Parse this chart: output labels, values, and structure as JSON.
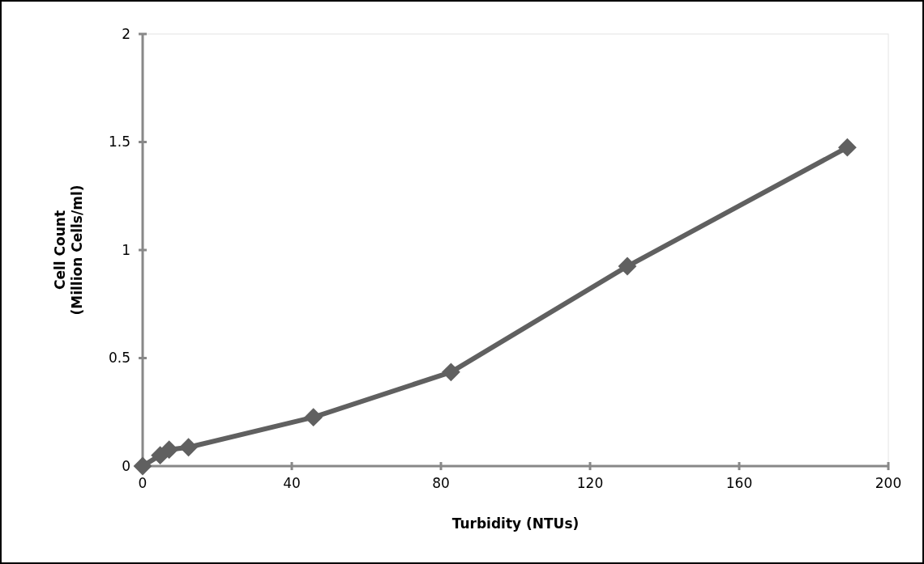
{
  "chart_data": {
    "type": "line",
    "xlabel": "Turbidity (NTUs)",
    "ylabel": "Cell Count\n(Million Cells/ml)",
    "x": [
      0,
      4.7,
      7.1,
      12.3,
      45.8,
      82.7,
      130,
      189
    ],
    "series": [
      {
        "color": "#606060",
        "values": [
          0,
          0.05,
          0.076,
          0.087,
          0.226,
          0.435,
          0.925,
          1.475
        ]
      }
    ],
    "xlim": [
      0,
      200
    ],
    "xticks": [
      0,
      40,
      80,
      120,
      160,
      200
    ],
    "ylim": [
      0,
      2
    ],
    "yticks": [
      0,
      0.5,
      1,
      1.5,
      2
    ],
    "marker": "diamond",
    "line_style": "solid",
    "grid": false
  }
}
